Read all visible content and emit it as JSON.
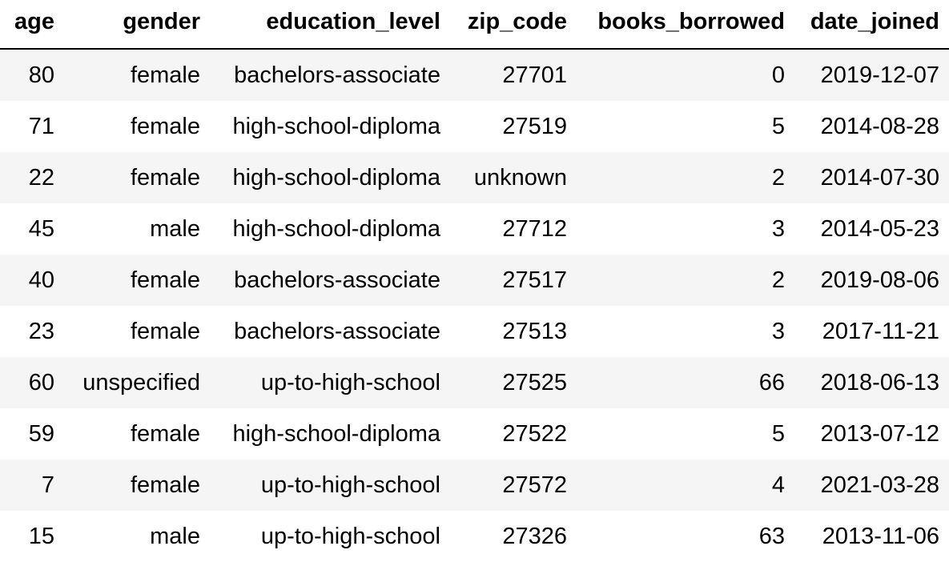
{
  "table": {
    "columns": [
      "age",
      "gender",
      "education_level",
      "zip_code",
      "books_borrowed",
      "date_joined"
    ],
    "rows": [
      [
        "80",
        "female",
        "bachelors-associate",
        "27701",
        "0",
        "2019-12-07"
      ],
      [
        "71",
        "female",
        "high-school-diploma",
        "27519",
        "5",
        "2014-08-28"
      ],
      [
        "22",
        "female",
        "high-school-diploma",
        "unknown",
        "2",
        "2014-07-30"
      ],
      [
        "45",
        "male",
        "high-school-diploma",
        "27712",
        "3",
        "2014-05-23"
      ],
      [
        "40",
        "female",
        "bachelors-associate",
        "27517",
        "2",
        "2019-08-06"
      ],
      [
        "23",
        "female",
        "bachelors-associate",
        "27513",
        "3",
        "2017-11-21"
      ],
      [
        "60",
        "unspecified",
        "up-to-high-school",
        "27525",
        "66",
        "2018-06-13"
      ],
      [
        "59",
        "female",
        "high-school-diploma",
        "27522",
        "5",
        "2013-07-12"
      ],
      [
        "7",
        "female",
        "up-to-high-school",
        "27572",
        "4",
        "2021-03-28"
      ],
      [
        "15",
        "male",
        "up-to-high-school",
        "27326",
        "63",
        "2013-11-06"
      ]
    ]
  }
}
